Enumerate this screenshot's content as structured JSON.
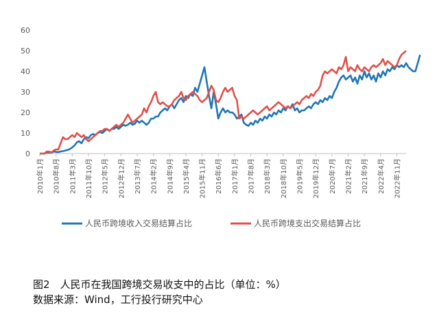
{
  "caption": {
    "title": "图2　人民币在我国跨境交易收支中的占比（单位：%）",
    "source": "数据来源：Wind，工行投行研究中心"
  },
  "chart_data": {
    "type": "line",
    "ylim": [
      0,
      60
    ],
    "yticks": [
      0,
      10,
      20,
      30,
      40,
      50,
      60
    ],
    "x_tick_labels": [
      "2010年1月",
      "2010年8月",
      "2011年3月",
      "2011年10月",
      "2012年5月",
      "2012年12月",
      "2013年7月",
      "2014年2月",
      "2014年9月",
      "2015年4月",
      "2015年11月",
      "2016年6月",
      "2017年1月",
      "2017年8月",
      "2018年3月",
      "2018年10月",
      "2019年5月",
      "2019年12月",
      "2020年7月",
      "2021年2月",
      "2021年9月",
      "2022年4月",
      "2022年11月"
    ],
    "x_months": 159,
    "grid": false,
    "legend_position": "bottom",
    "series": [
      {
        "name": "人民币跨境收入交易结算占比",
        "color": "#1f77b4",
        "values": [
          0,
          0,
          0,
          0.5,
          0.5,
          0.5,
          1,
          0.8,
          0.7,
          1,
          1.2,
          1.5,
          1.8,
          2.2,
          3,
          4,
          5.5,
          6,
          5,
          7,
          8,
          7.5,
          9,
          9.5,
          9,
          10,
          10.5,
          10,
          11,
          12,
          11,
          12,
          12,
          13,
          12,
          13,
          14,
          13.5,
          14,
          15,
          14,
          14.5,
          16,
          15,
          16,
          15,
          14,
          15,
          17,
          17,
          18,
          18,
          20,
          21,
          22,
          21,
          23,
          24,
          22,
          24,
          26,
          27,
          25,
          28,
          27,
          29,
          28,
          32,
          30,
          34,
          38,
          42,
          35,
          28,
          22,
          30,
          24,
          17,
          20,
          22,
          20,
          21,
          20,
          20,
          19,
          17,
          18,
          19,
          15,
          14,
          13.5,
          15,
          14,
          16,
          15,
          17,
          16,
          18,
          17,
          19,
          18,
          20,
          19,
          21,
          20,
          22,
          21,
          23,
          22,
          24,
          21,
          22,
          20,
          21,
          21,
          22,
          23,
          22,
          24,
          25,
          24,
          26,
          25,
          27,
          26,
          28,
          27,
          30,
          32,
          35,
          37,
          38,
          36,
          37,
          38,
          35,
          37,
          34,
          38,
          36,
          40,
          37,
          39,
          36,
          38,
          35,
          39,
          37,
          40,
          38,
          41,
          40,
          42,
          41,
          43,
          42,
          43,
          42,
          44,
          42,
          41,
          40,
          40,
          44,
          48
        ]
      },
      {
        "name": "人民币跨境支出交易结算占比",
        "color": "#e0504a",
        "values": [
          0,
          0,
          0,
          1,
          1,
          0.5,
          1.5,
          2,
          2,
          5,
          8,
          7,
          7,
          8,
          9,
          8,
          10,
          9,
          8,
          9,
          7,
          6,
          7,
          8,
          9,
          10,
          11,
          11,
          12,
          12,
          11,
          12,
          13,
          14,
          13,
          14,
          15,
          17,
          19,
          17,
          15,
          16,
          17,
          18,
          19,
          22,
          20,
          23,
          25,
          28,
          30,
          25,
          24,
          25,
          24,
          23,
          23,
          24,
          26,
          27,
          28,
          30,
          27,
          26,
          28,
          29,
          30,
          29,
          28,
          26,
          25,
          26,
          27,
          30,
          33,
          31,
          26,
          25,
          27,
          30,
          32,
          30,
          31,
          32,
          28,
          26,
          17,
          18,
          17,
          18,
          19,
          20,
          21,
          20,
          19,
          20,
          21,
          22,
          23,
          21,
          22,
          23,
          24,
          25,
          24,
          23,
          22,
          23,
          22,
          23,
          24,
          25,
          24,
          26,
          27,
          28,
          27,
          29,
          28,
          30,
          31,
          33,
          38,
          40,
          39,
          40,
          41,
          40,
          39,
          42,
          41,
          43,
          47,
          40,
          42,
          41,
          40,
          43,
          41,
          40,
          42,
          41,
          40,
          42,
          43,
          42,
          43,
          44,
          46,
          43,
          45,
          44,
          43,
          42,
          43,
          46,
          48,
          49,
          50
        ]
      }
    ]
  }
}
